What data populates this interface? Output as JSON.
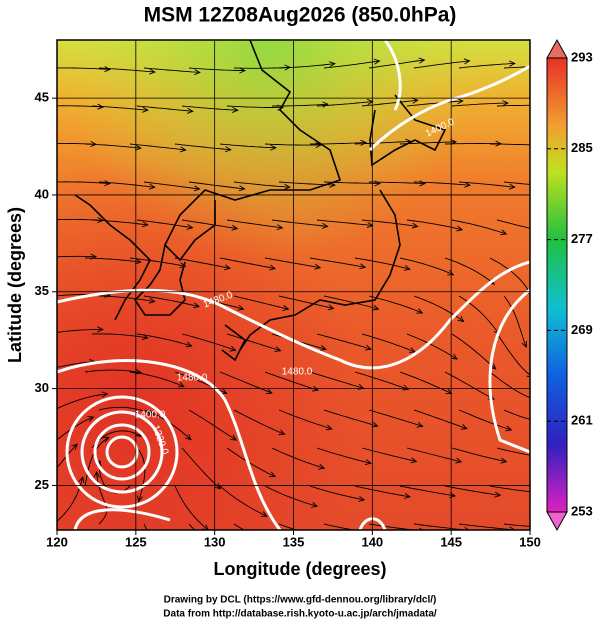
{
  "map": {
    "title": "MSM 12Z08Aug2026 (850.0hPa)",
    "x_label": "Longitude (degrees)",
    "y_label": "Latitude  (degrees)",
    "xlim": [
      120,
      150
    ],
    "ylim": [
      22.7,
      48
    ],
    "xticks": [
      120,
      125,
      130,
      135,
      140,
      145,
      150
    ],
    "yticks": [
      25,
      30,
      35,
      40,
      45
    ],
    "contour_labels": [
      "1480.0",
      "1400.0",
      "1480.0",
      "1480.0",
      "1400.0",
      "1320.0"
    ],
    "colorbar": {
      "lim": [
        253,
        293
      ],
      "ticks": [
        253,
        261,
        269,
        277,
        285,
        293
      ]
    },
    "footer": [
      "Drawing by DCL (https://www.gfd-dennou.org/library/dcl/)",
      "Data from http://database.rish.kyoto-u.ac.jp/arch/jmadata/"
    ]
  }
}
